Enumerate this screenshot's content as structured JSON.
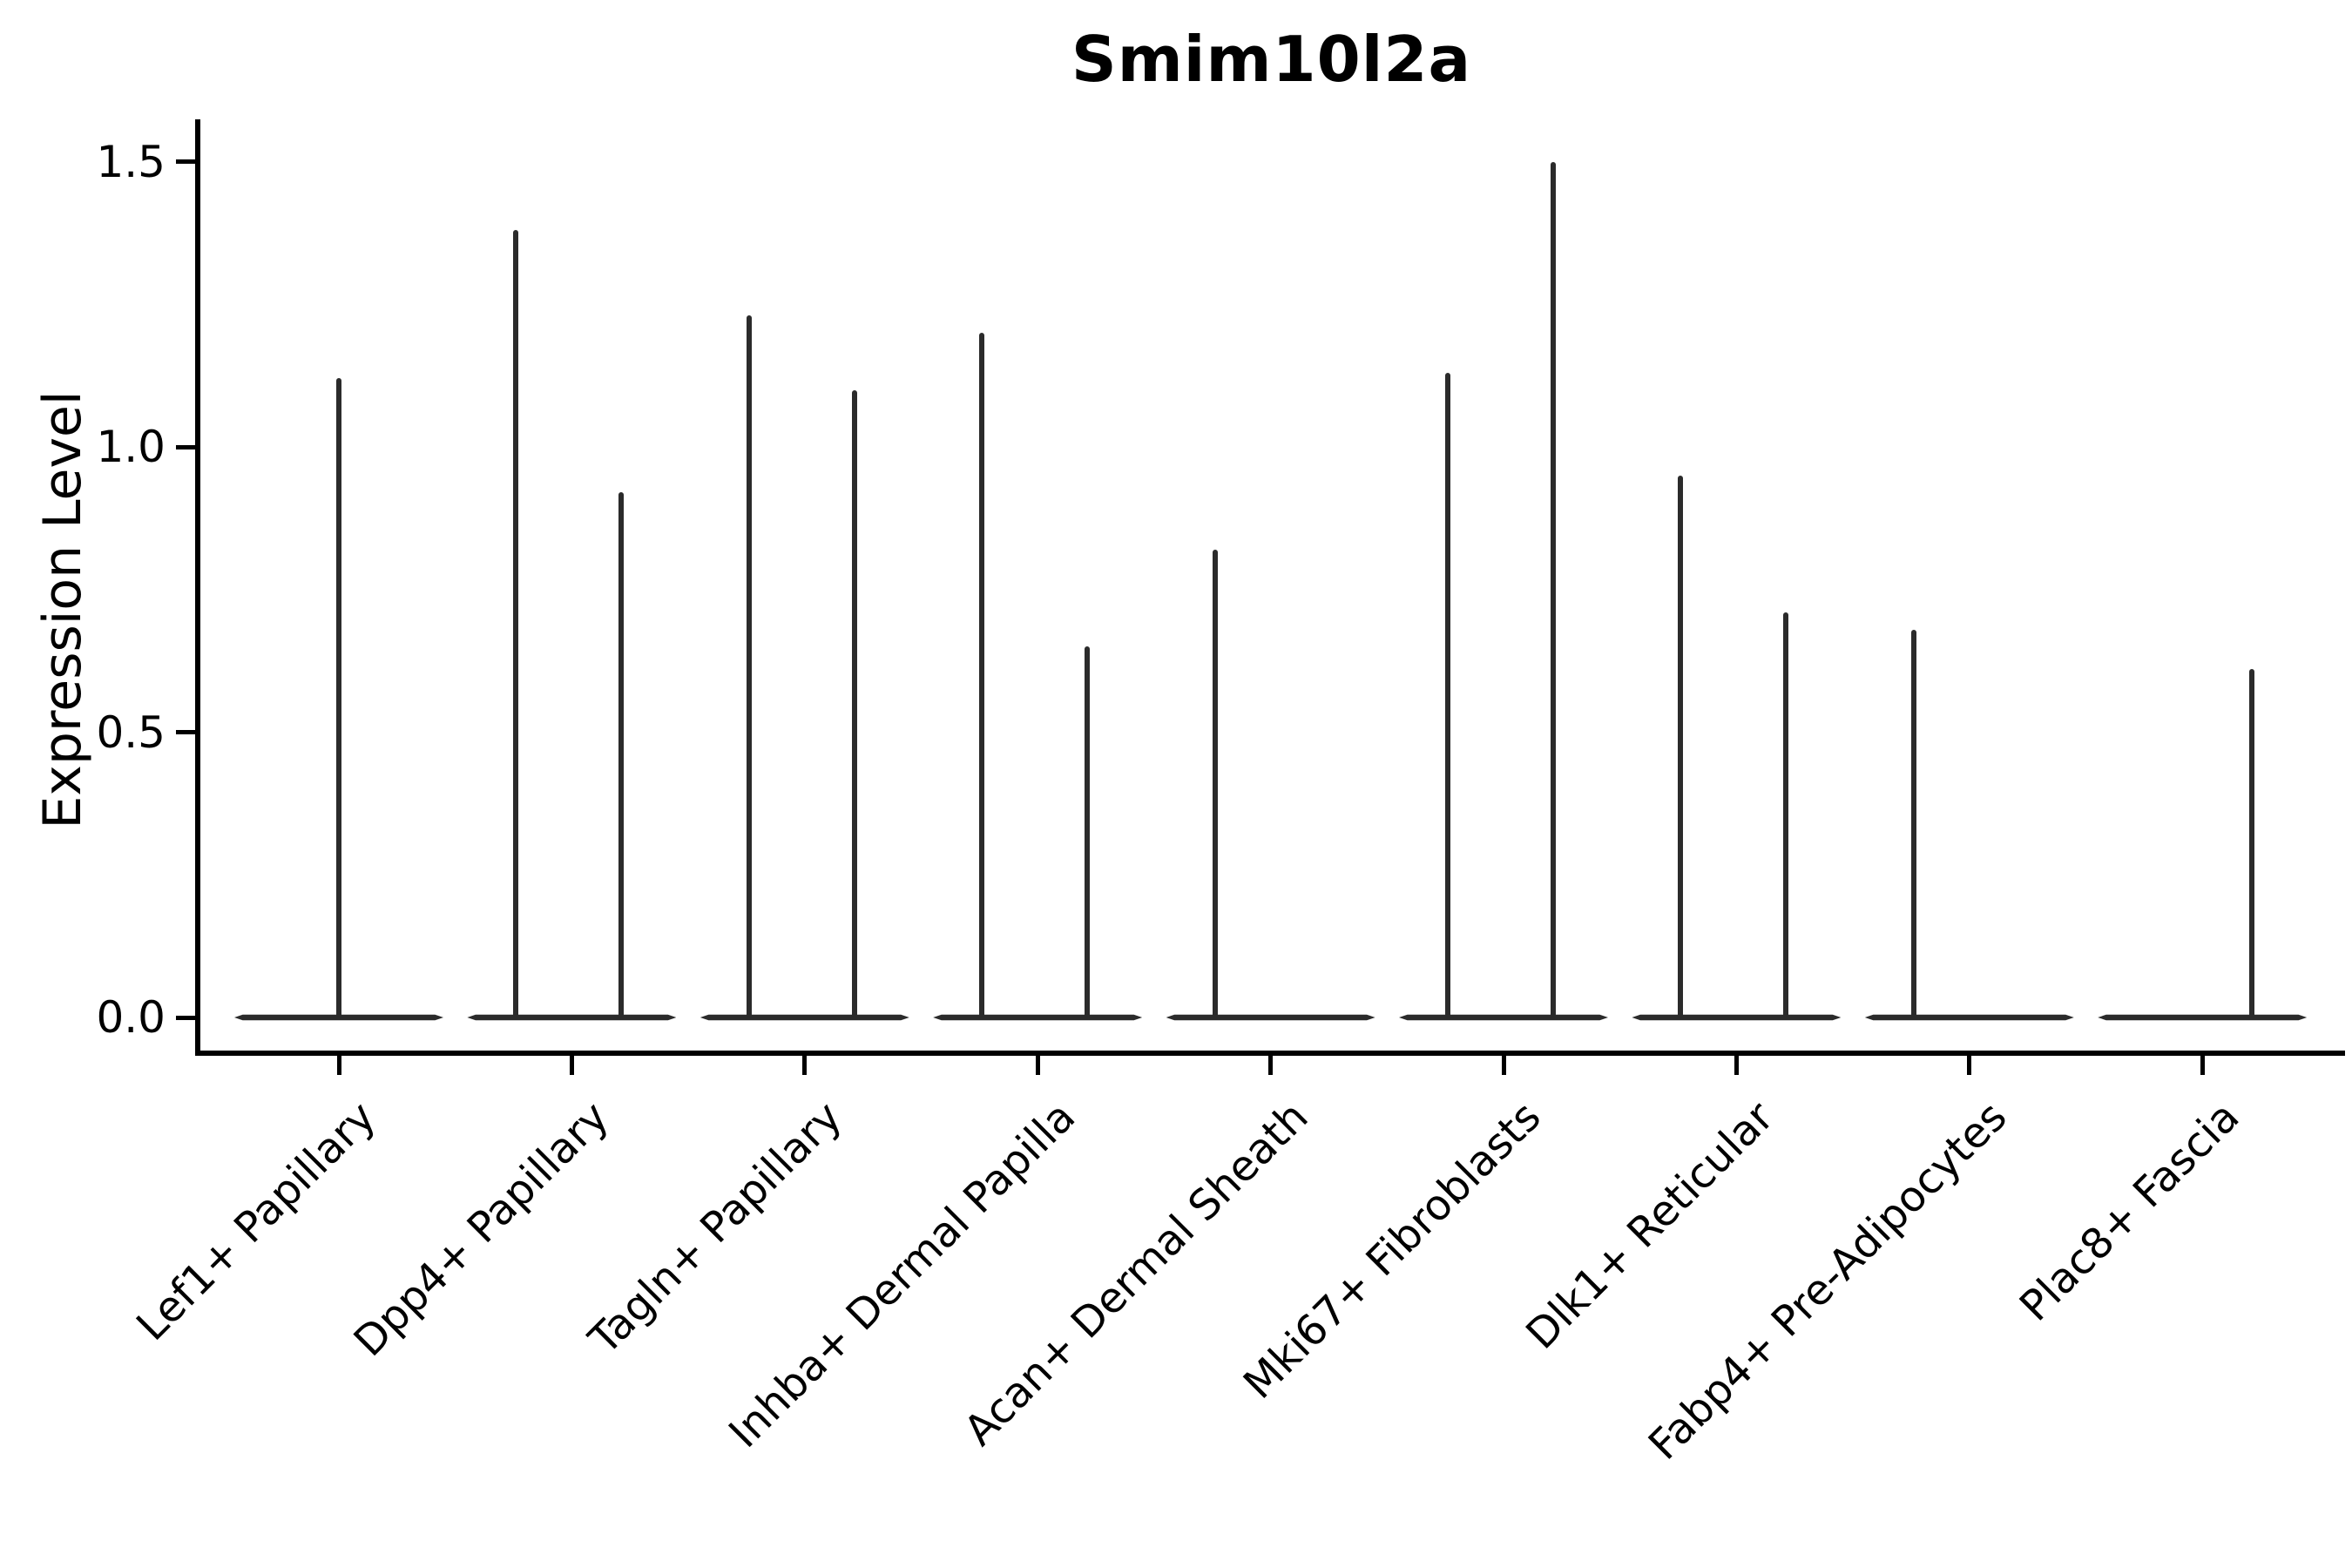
{
  "title": "Smim10l2a",
  "axes": {
    "ylabel": "Expression Level",
    "xlabel": ""
  },
  "colors": {
    "violin": "#2b2b2b",
    "axis": "#000000",
    "text": "#000000",
    "background": "#ffffff"
  },
  "chart_data": {
    "type": "violin",
    "title": "Smim10l2a",
    "xlabel": "",
    "ylabel": "Expression Level",
    "ylim": [
      0,
      1.57
    ],
    "y_ticks": [
      0,
      0.5,
      1.0,
      1.5
    ],
    "y_tick_labels": [
      "0.0",
      "0.5",
      "1.0",
      "1.5"
    ],
    "grid": false,
    "legend": null,
    "x_tick_rotation": 45,
    "categories": [
      "Lef1+ Papillary",
      "Dpp4+ Papillary",
      "Tagln+ Papillary",
      "Inhba+ Dermal Papilla",
      "Acan+ Dermal Sheath",
      "Mki67+ Fibroblasts",
      "Dlk1+ Reticular",
      "Fabp4+ Pre-Adipocytes",
      "Plac8+ Fascia"
    ],
    "violins": [
      {
        "category": "Lef1+ Papillary",
        "spikes": [
          {
            "pos": "center",
            "max": 1.12
          }
        ]
      },
      {
        "category": "Dpp4+ Papillary",
        "spikes": [
          {
            "pos": "left",
            "max": 1.38
          },
          {
            "pos": "right",
            "max": 0.92
          }
        ]
      },
      {
        "category": "Tagln+ Papillary",
        "spikes": [
          {
            "pos": "left",
            "max": 1.23
          },
          {
            "pos": "right",
            "max": 1.1
          }
        ]
      },
      {
        "category": "Inhba+ Dermal Papilla",
        "spikes": [
          {
            "pos": "left",
            "max": 1.2
          },
          {
            "pos": "right",
            "max": 0.65
          }
        ]
      },
      {
        "category": "Acan+ Dermal Sheath",
        "spikes": [
          {
            "pos": "left",
            "max": 0.82
          }
        ]
      },
      {
        "category": "Mki67+ Fibroblasts",
        "spikes": [
          {
            "pos": "left",
            "max": 1.13
          },
          {
            "pos": "right",
            "max": 1.5
          }
        ]
      },
      {
        "category": "Dlk1+ Reticular",
        "spikes": [
          {
            "pos": "left",
            "max": 0.95
          },
          {
            "pos": "right",
            "max": 0.71
          }
        ]
      },
      {
        "category": "Fabp4+ Pre-Adipocytes",
        "spikes": [
          {
            "pos": "left",
            "max": 0.68
          }
        ]
      },
      {
        "category": "Plac8+ Fascia",
        "spikes": [
          {
            "pos": "right",
            "max": 0.61
          }
        ]
      }
    ],
    "note": "Violin plot of gene expression per fibroblast cluster; each violin is flattened at 0 with a thin spike reaching the cluster's maximum expression value."
  }
}
